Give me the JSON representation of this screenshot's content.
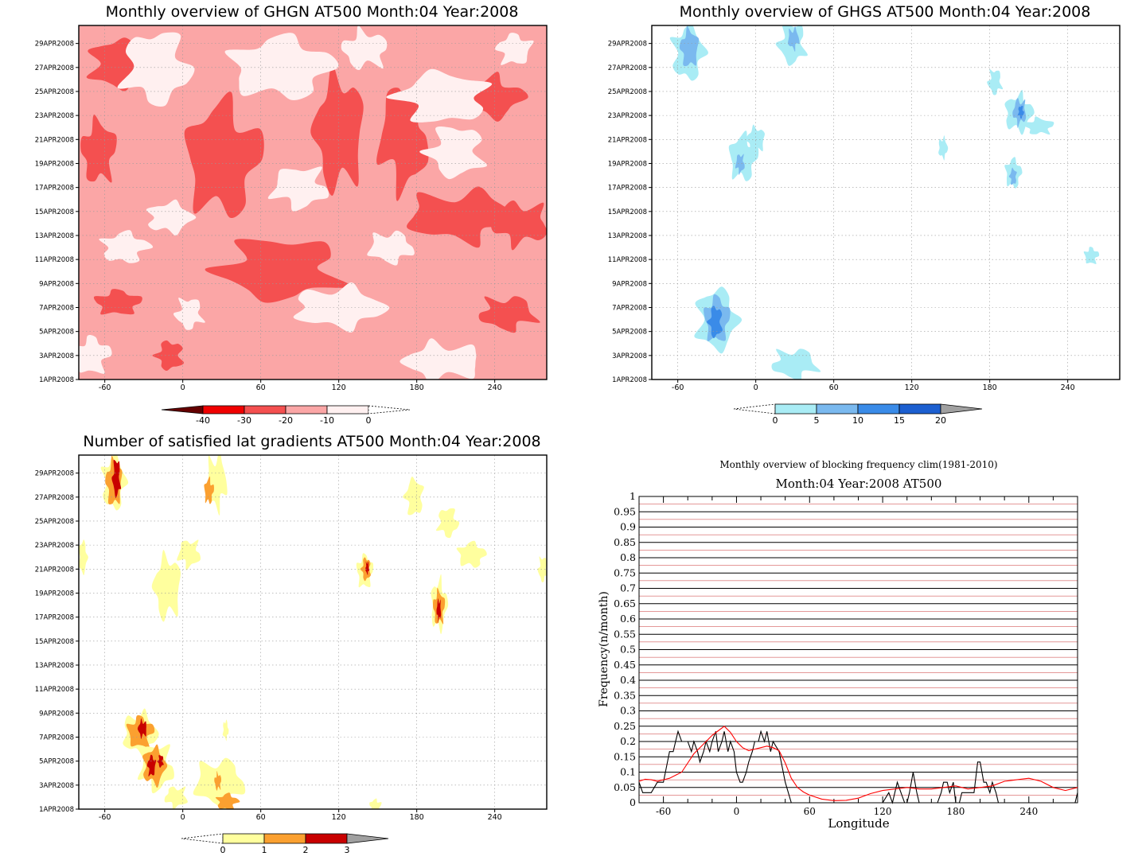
{
  "colors": {
    "ghgn": [
      "#fff0f0",
      "#fba6a6",
      "#f45050",
      "#f00000",
      "#640000"
    ],
    "ghgs": [
      "#a9ecf5",
      "#7ab9ef",
      "#3a8be8",
      "#1c5fd0",
      "#a0a0a0"
    ],
    "grad": [
      "#ffff9e",
      "#fba030",
      "#c80000",
      "#a0a0a0"
    ],
    "observed_line": "#000000",
    "clim_line": "#ff0000"
  },
  "chart_data": [
    {
      "id": "ghgn",
      "type": "heatmap",
      "title": "Monthly overview of GHGN AT500 Month:04 Year:2008",
      "x_ticks": [
        "-60",
        "0",
        "60",
        "120",
        "180",
        "240"
      ],
      "x_tick_values": [
        -60,
        0,
        60,
        120,
        180,
        240
      ],
      "xlim": [
        -80,
        280
      ],
      "y_ticks": [
        "1APR2008",
        "3APR2008",
        "5APR2008",
        "7APR2008",
        "9APR2008",
        "11APR2008",
        "13APR2008",
        "15APR2008",
        "17APR2008",
        "19APR2008",
        "21APR2008",
        "23APR2008",
        "25APR2008",
        "27APR2008",
        "29APR2008"
      ],
      "ylim": [
        1,
        30.5
      ],
      "colorbar": {
        "labels": [
          "-40",
          "-30",
          "-20",
          "-10",
          "0"
        ],
        "levels": [
          -40,
          -30,
          -20,
          -10,
          0
        ]
      },
      "features": [
        {
          "level": "-30",
          "x": 70,
          "y": 10,
          "rx": 14,
          "ry": 1.6
        },
        {
          "level": "-30",
          "x": 215,
          "y": 14.2,
          "rx": 20,
          "ry": 1.2
        },
        {
          "level": "-20",
          "x": 75,
          "y": 10.2,
          "rx": 55,
          "ry": 3.0
        },
        {
          "level": "-20",
          "x": 215,
          "y": 14.6,
          "rx": 50,
          "ry": 2.4
        },
        {
          "level": "-20",
          "x": 30,
          "y": 19.4,
          "rx": 32,
          "ry": 5.5
        },
        {
          "level": "-20",
          "x": 120,
          "y": 21.6,
          "rx": 22,
          "ry": 5.5
        },
        {
          "level": "-20",
          "x": 170,
          "y": 21.2,
          "rx": 22,
          "ry": 5.0
        },
        {
          "level": "-20",
          "x": -50,
          "y": 27.3,
          "rx": 25,
          "ry": 2.4
        },
        {
          "level": "-20",
          "x": -50,
          "y": 7.4,
          "rx": 20,
          "ry": 1.2
        },
        {
          "level": "-20",
          "x": -10,
          "y": 3.0,
          "rx": 12,
          "ry": 1.4
        },
        {
          "level": "-20",
          "x": 250,
          "y": 6.5,
          "rx": 25,
          "ry": 1.6
        },
        {
          "level": "-20",
          "x": 235,
          "y": 24.5,
          "rx": 30,
          "ry": 2.0
        },
        {
          "level": "-20",
          "x": -65,
          "y": 20.0,
          "rx": 15,
          "ry": 3.0
        },
        {
          "level": "-20",
          "x": 260,
          "y": 14.0,
          "rx": 25,
          "ry": 2.0
        },
        {
          "level": "0",
          "x": -20,
          "y": 27.0,
          "rx": 30,
          "ry": 3.5
        },
        {
          "level": "0",
          "x": 75,
          "y": 27.0,
          "rx": 45,
          "ry": 3.0
        },
        {
          "level": "0",
          "x": 200,
          "y": 24.5,
          "rx": 40,
          "ry": 2.5
        },
        {
          "level": "0",
          "x": 5,
          "y": 6.5,
          "rx": 12,
          "ry": 1.5
        },
        {
          "level": "0",
          "x": 120,
          "y": 7.0,
          "rx": 40,
          "ry": 2.0
        },
        {
          "level": "0",
          "x": -70,
          "y": 3.0,
          "rx": 15,
          "ry": 1.8
        },
        {
          "level": "0",
          "x": 200,
          "y": 2.5,
          "rx": 35,
          "ry": 1.8
        },
        {
          "level": "0",
          "x": 90,
          "y": 17.0,
          "rx": 25,
          "ry": 2.0
        },
        {
          "level": "0",
          "x": -10,
          "y": 14.5,
          "rx": 20,
          "ry": 1.5
        },
        {
          "level": "0",
          "x": 255,
          "y": 28.5,
          "rx": 15,
          "ry": 1.5
        },
        {
          "level": "0",
          "x": 210,
          "y": 20.0,
          "rx": 25,
          "ry": 2.5
        },
        {
          "level": "0",
          "x": 160,
          "y": 12.0,
          "rx": 20,
          "ry": 1.5
        },
        {
          "level": "0",
          "x": -45,
          "y": 12.0,
          "rx": 20,
          "ry": 1.5
        },
        {
          "level": "0",
          "x": 140,
          "y": 28.5,
          "rx": 20,
          "ry": 1.8
        }
      ]
    },
    {
      "id": "ghgs",
      "type": "heatmap",
      "title": "Monthly overview of GHGS AT500 Month:04 Year:2008",
      "x_ticks": [
        "-60",
        "0",
        "60",
        "120",
        "180",
        "240"
      ],
      "x_tick_values": [
        -60,
        0,
        60,
        120,
        180,
        240
      ],
      "xlim": [
        -80,
        280
      ],
      "y_ticks": [
        "1APR2008",
        "3APR2008",
        "5APR2008",
        "7APR2008",
        "9APR2008",
        "11APR2008",
        "13APR2008",
        "15APR2008",
        "17APR2008",
        "19APR2008",
        "21APR2008",
        "23APR2008",
        "25APR2008",
        "27APR2008",
        "29APR2008"
      ],
      "ylim": [
        1,
        30.5
      ],
      "colorbar": {
        "labels": [
          "0",
          "5",
          "10",
          "15",
          "20"
        ],
        "levels": [
          0,
          5,
          10,
          15,
          20
        ]
      },
      "features": [
        {
          "level": "0",
          "x": -52,
          "y": 28.2,
          "rx": 14,
          "ry": 2.6
        },
        {
          "level": "5",
          "x": -51,
          "y": 28.6,
          "rx": 8,
          "ry": 1.8
        },
        {
          "level": "0",
          "x": 28,
          "y": 29.0,
          "rx": 12,
          "ry": 2.0
        },
        {
          "level": "5",
          "x": 29,
          "y": 29.4,
          "rx": 5,
          "ry": 1.0
        },
        {
          "level": "0",
          "x": -10,
          "y": 19.5,
          "rx": 12,
          "ry": 2.2
        },
        {
          "level": "0",
          "x": 0,
          "y": 21.0,
          "rx": 8,
          "ry": 1.2
        },
        {
          "level": "5",
          "x": -12,
          "y": 19.0,
          "rx": 4,
          "ry": 0.9
        },
        {
          "level": "0",
          "x": -30,
          "y": 6.0,
          "rx": 18,
          "ry": 3.0
        },
        {
          "level": "5",
          "x": -30,
          "y": 6.0,
          "rx": 11,
          "ry": 2.2
        },
        {
          "level": "10",
          "x": -31,
          "y": 5.8,
          "rx": 6,
          "ry": 1.5
        },
        {
          "level": "0",
          "x": 30,
          "y": 2.3,
          "rx": 20,
          "ry": 1.4
        },
        {
          "level": "0",
          "x": 202,
          "y": 23.2,
          "rx": 12,
          "ry": 1.8
        },
        {
          "level": "0",
          "x": 218,
          "y": 22.1,
          "rx": 12,
          "ry": 0.8
        },
        {
          "level": "5",
          "x": 203,
          "y": 23.3,
          "rx": 6,
          "ry": 1.2
        },
        {
          "level": "10",
          "x": 204,
          "y": 23.3,
          "rx": 2.5,
          "ry": 0.6
        },
        {
          "level": "0",
          "x": 198,
          "y": 18.2,
          "rx": 7,
          "ry": 1.4
        },
        {
          "level": "5",
          "x": 198,
          "y": 17.9,
          "rx": 3,
          "ry": 0.8
        },
        {
          "level": "0",
          "x": 184,
          "y": 25.8,
          "rx": 6,
          "ry": 1.2
        },
        {
          "level": "0",
          "x": 144,
          "y": 20.3,
          "rx": 4,
          "ry": 1.0
        },
        {
          "level": "0",
          "x": 258,
          "y": 11.3,
          "rx": 6,
          "ry": 0.8
        }
      ]
    },
    {
      "id": "grad",
      "type": "heatmap",
      "title": "Number of satisfied lat gradients AT500 Month:04 Year:2008",
      "x_ticks": [
        "-60",
        "0",
        "60",
        "120",
        "180",
        "240"
      ],
      "x_tick_values": [
        -60,
        0,
        60,
        120,
        180,
        240
      ],
      "xlim": [
        -80,
        280
      ],
      "y_ticks": [
        "1APR2008",
        "3APR2008",
        "5APR2008",
        "7APR2008",
        "9APR2008",
        "11APR2008",
        "13APR2008",
        "15APR2008",
        "17APR2008",
        "19APR2008",
        "21APR2008",
        "23APR2008",
        "25APR2008",
        "27APR2008",
        "29APR2008"
      ],
      "ylim": [
        1,
        30.5
      ],
      "colorbar": {
        "labels": [
          "0",
          "1",
          "2",
          "3"
        ],
        "levels": [
          0,
          1,
          2,
          3
        ]
      },
      "features": [
        {
          "level": "0",
          "x": -53,
          "y": 28.2,
          "rx": 10,
          "ry": 2.6
        },
        {
          "level": "1",
          "x": -53,
          "y": 28.2,
          "rx": 7,
          "ry": 2.2
        },
        {
          "level": "2",
          "x": -51,
          "y": 28.6,
          "rx": 3.5,
          "ry": 1.8
        },
        {
          "level": "0",
          "x": 26,
          "y": 28.3,
          "rx": 9,
          "ry": 2.6
        },
        {
          "level": "1",
          "x": 20,
          "y": 27.5,
          "rx": 4,
          "ry": 1.2
        },
        {
          "level": "0",
          "x": -12,
          "y": 19.5,
          "rx": 12,
          "ry": 3.0
        },
        {
          "level": "0",
          "x": 5,
          "y": 22.3,
          "rx": 10,
          "ry": 1.3
        },
        {
          "level": "0",
          "x": -77,
          "y": 22.0,
          "rx": 4,
          "ry": 1.6
        },
        {
          "level": "0",
          "x": 140,
          "y": 20.8,
          "rx": 7,
          "ry": 1.6
        },
        {
          "level": "1",
          "x": 141,
          "y": 21.0,
          "rx": 4,
          "ry": 1.1
        },
        {
          "level": "2",
          "x": 142,
          "y": 21.1,
          "rx": 1.6,
          "ry": 0.6
        },
        {
          "level": "0",
          "x": 197,
          "y": 18.0,
          "rx": 7,
          "ry": 2.4
        },
        {
          "level": "1",
          "x": 197,
          "y": 17.8,
          "rx": 5,
          "ry": 1.6
        },
        {
          "level": "2",
          "x": 197,
          "y": 17.6,
          "rx": 2,
          "ry": 1.0
        },
        {
          "level": "0",
          "x": 204,
          "y": 24.9,
          "rx": 9,
          "ry": 1.4
        },
        {
          "level": "0",
          "x": 222,
          "y": 22.2,
          "rx": 12,
          "ry": 1.2
        },
        {
          "level": "0",
          "x": 178,
          "y": 27.0,
          "rx": 8,
          "ry": 1.8
        },
        {
          "level": "0",
          "x": 277,
          "y": 21.0,
          "rx": 4,
          "ry": 1.2
        },
        {
          "level": "0",
          "x": -33,
          "y": 7.3,
          "rx": 15,
          "ry": 2.0
        },
        {
          "level": "1",
          "x": -33,
          "y": 7.4,
          "rx": 11,
          "ry": 1.5
        },
        {
          "level": "2",
          "x": -31,
          "y": 7.7,
          "rx": 4,
          "ry": 0.8
        },
        {
          "level": "0",
          "x": -20,
          "y": 4.5,
          "rx": 15,
          "ry": 2.2
        },
        {
          "level": "1",
          "x": -22,
          "y": 4.6,
          "rx": 10,
          "ry": 1.8
        },
        {
          "level": "2",
          "x": -24,
          "y": 4.6,
          "rx": 3.5,
          "ry": 1.0
        },
        {
          "level": "2",
          "x": -17,
          "y": 5.0,
          "rx": 2.5,
          "ry": 0.6
        },
        {
          "level": "0",
          "x": 28,
          "y": 3.2,
          "rx": 22,
          "ry": 2.2
        },
        {
          "level": "1",
          "x": 34,
          "y": 1.6,
          "rx": 9,
          "ry": 0.8
        },
        {
          "level": "1",
          "x": 27,
          "y": 3.3,
          "rx": 3,
          "ry": 0.8
        },
        {
          "level": "0",
          "x": -5,
          "y": 2.0,
          "rx": 10,
          "ry": 1.0
        },
        {
          "level": "0",
          "x": 33,
          "y": 7.6,
          "rx": 2.5,
          "ry": 0.9
        },
        {
          "level": "0",
          "x": 148,
          "y": 1.3,
          "rx": 5,
          "ry": 0.6
        }
      ]
    },
    {
      "id": "freq",
      "type": "line",
      "title": "Monthly overview of blocking frequency clim(1981-2010)",
      "subtitle": "Month:04 Year:2008  AT500",
      "xlabel": "Longitude",
      "ylabel": "Frequency(n/month)",
      "xlim": [
        -80,
        280
      ],
      "ylim": [
        0,
        1
      ],
      "x_ticks": [
        "-60",
        "0",
        "60",
        "120",
        "180",
        "240"
      ],
      "x_tick_values": [
        -60,
        0,
        60,
        120,
        180,
        240
      ],
      "y_ticks": [
        "0",
        "0.05",
        "0.1",
        "0.15",
        "0.2",
        "0.25",
        "0.3",
        "0.35",
        "0.4",
        "0.45",
        "0.5",
        "0.55",
        "0.6",
        "0.65",
        "0.7",
        "0.75",
        "0.8",
        "0.85",
        "0.9",
        "0.95",
        "1"
      ],
      "y_tick_values": [
        0,
        0.05,
        0.1,
        0.15,
        0.2,
        0.25,
        0.3,
        0.35,
        0.4,
        0.45,
        0.5,
        0.55,
        0.6,
        0.65,
        0.7,
        0.75,
        0.8,
        0.85,
        0.9,
        0.95,
        1
      ],
      "series": [
        {
          "x": [
            -80,
            -77,
            -70,
            -65,
            -60,
            -55,
            -52,
            -50,
            -48,
            -45,
            -40,
            -37,
            -35,
            -32,
            -30,
            -27,
            -25,
            -22,
            -20,
            -17,
            -15,
            -12,
            -10,
            -7,
            -5,
            -2,
            0,
            3,
            5,
            8,
            10,
            13,
            15,
            18,
            20,
            23,
            25,
            28,
            30,
            35,
            40,
            45,
            50,
            52,
            55,
            60,
            70,
            80,
            90,
            100,
            110,
            120,
            125,
            128,
            130,
            132,
            135,
            138,
            140,
            142,
            145,
            148,
            150,
            160,
            165,
            168,
            170,
            173,
            175,
            178,
            180,
            183,
            185,
            190,
            195,
            198,
            200,
            203,
            205,
            208,
            210,
            213,
            215,
            220,
            230,
            240,
            250,
            260,
            270,
            275,
            278,
            280
          ],
          "y": [
            0.067,
            0.033,
            0.033,
            0.067,
            0.067,
            0.167,
            0.167,
            0.2,
            0.233,
            0.2,
            0.2,
            0.167,
            0.2,
            0.167,
            0.133,
            0.167,
            0.2,
            0.167,
            0.2,
            0.233,
            0.167,
            0.2,
            0.233,
            0.167,
            0.2,
            0.167,
            0.1,
            0.067,
            0.067,
            0.1,
            0.133,
            0.167,
            0.2,
            0.2,
            0.233,
            0.2,
            0.233,
            0.167,
            0.2,
            0.167,
            0.067,
            0.0,
            0.0,
            0.0,
            0.0,
            0.0,
            0.0,
            0.0,
            0.0,
            0.0,
            0.0,
            0.0,
            0.033,
            0.0,
            0.033,
            0.067,
            0.033,
            0.0,
            0.0,
            0.033,
            0.1,
            0.033,
            0.0,
            0.0,
            0.0,
            0.033,
            0.067,
            0.067,
            0.033,
            0.067,
            0.0,
            0.0,
            0.033,
            0.033,
            0.033,
            0.133,
            0.133,
            0.067,
            0.067,
            0.033,
            0.067,
            0.033,
            0.0,
            0.0,
            0.0,
            0.0,
            0.0,
            0.0,
            0.0,
            0.0,
            0.0,
            0.033
          ]
        },
        {
          "x": [
            -80,
            -75,
            -70,
            -65,
            -60,
            -55,
            -50,
            -45,
            -40,
            -35,
            -30,
            -25,
            -20,
            -15,
            -10,
            -5,
            0,
            5,
            10,
            15,
            20,
            25,
            30,
            35,
            40,
            45,
            50,
            55,
            60,
            70,
            80,
            90,
            100,
            110,
            120,
            130,
            140,
            150,
            160,
            170,
            180,
            190,
            200,
            210,
            220,
            230,
            240,
            250,
            260,
            270,
            280
          ],
          "y": [
            0.07,
            0.077,
            0.075,
            0.07,
            0.075,
            0.08,
            0.09,
            0.1,
            0.13,
            0.16,
            0.18,
            0.2,
            0.22,
            0.235,
            0.25,
            0.23,
            0.2,
            0.18,
            0.17,
            0.175,
            0.18,
            0.185,
            0.18,
            0.17,
            0.13,
            0.08,
            0.05,
            0.035,
            0.025,
            0.012,
            0.007,
            0.008,
            0.015,
            0.03,
            0.04,
            0.045,
            0.05,
            0.045,
            0.045,
            0.05,
            0.055,
            0.045,
            0.05,
            0.055,
            0.07,
            0.075,
            0.08,
            0.07,
            0.05,
            0.04,
            0.05
          ]
        }
      ]
    }
  ]
}
